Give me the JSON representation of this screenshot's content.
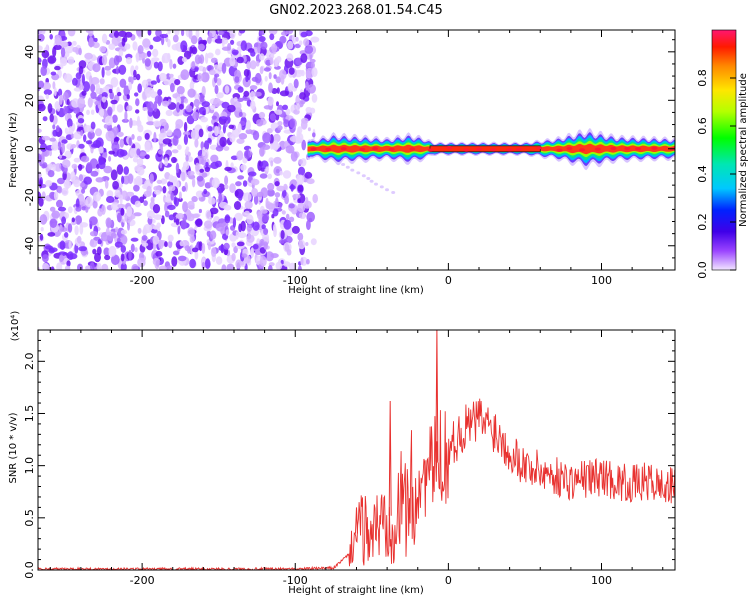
{
  "title": "GN02.2023.268.01.54.C45",
  "chart_data": [
    {
      "type": "heatmap",
      "xlabel": "Height of straight line (km)",
      "ylabel": "Frequency (Hz)",
      "xlim": [
        -268,
        148
      ],
      "ylim": [
        -50,
        49
      ],
      "xticks": [
        -200,
        -100,
        0,
        100
      ],
      "yticks": [
        -40,
        -20,
        0,
        20,
        40
      ],
      "noise_region_x": [
        -268,
        -88
      ],
      "signal_band": {
        "x_start": -92,
        "x_end": 148,
        "freq_center": 0,
        "halfwidth_points": [
          [
            -90,
            2
          ],
          [
            -75,
            3.5
          ],
          [
            -55,
            3
          ],
          [
            -40,
            2.5
          ],
          [
            -25,
            3.5
          ],
          [
            -15,
            2.5
          ],
          [
            -10,
            1.5
          ],
          [
            50,
            1.5
          ],
          [
            70,
            2.5
          ],
          [
            90,
            4.5
          ],
          [
            110,
            3
          ],
          [
            148,
            2.5
          ]
        ]
      },
      "colorbar": {
        "label": "Normalized spectral amplitude",
        "ticks": [
          "0.0",
          "0.2",
          "0.4",
          "0.6",
          "0.8"
        ],
        "range": [
          0,
          1
        ]
      }
    },
    {
      "type": "line",
      "xlabel": "Height of straight line (km)",
      "ylabel": "SNR (10 * v/v)",
      "multiplier": "(x10⁴)",
      "xlim": [
        -268,
        148
      ],
      "ylim": [
        0,
        2.3
      ],
      "xticks": [
        -200,
        -100,
        0,
        100
      ],
      "yticks": [
        "0.0",
        "0.5",
        "1.0",
        "1.5",
        "2.0"
      ],
      "line_color": "#e8312f",
      "series": [
        {
          "x": [
            -268,
            -200,
            -150,
            -100,
            -75,
            -65,
            -60,
            -55,
            -50,
            -45,
            -40,
            -35,
            -30,
            -25,
            -20,
            -15,
            -10,
            0,
            10,
            20,
            30,
            40,
            50,
            60,
            70,
            80,
            90,
            100,
            110,
            120,
            130,
            140,
            148
          ],
          "values": [
            0.01,
            0.01,
            0.01,
            0.01,
            0.02,
            0.15,
            0.35,
            0.4,
            0.35,
            0.45,
            0.5,
            0.55,
            0.62,
            0.7,
            0.8,
            0.9,
            1.0,
            1.15,
            1.35,
            1.45,
            1.35,
            1.15,
            1.0,
            0.95,
            0.9,
            0.85,
            0.88,
            0.9,
            0.85,
            0.82,
            0.85,
            0.8,
            0.8
          ]
        }
      ],
      "spikes": [
        {
          "x": -38,
          "value": 1.62
        },
        {
          "x": -7.5,
          "value": 2.3
        },
        {
          "x": -60,
          "value": 0.6
        }
      ]
    }
  ]
}
